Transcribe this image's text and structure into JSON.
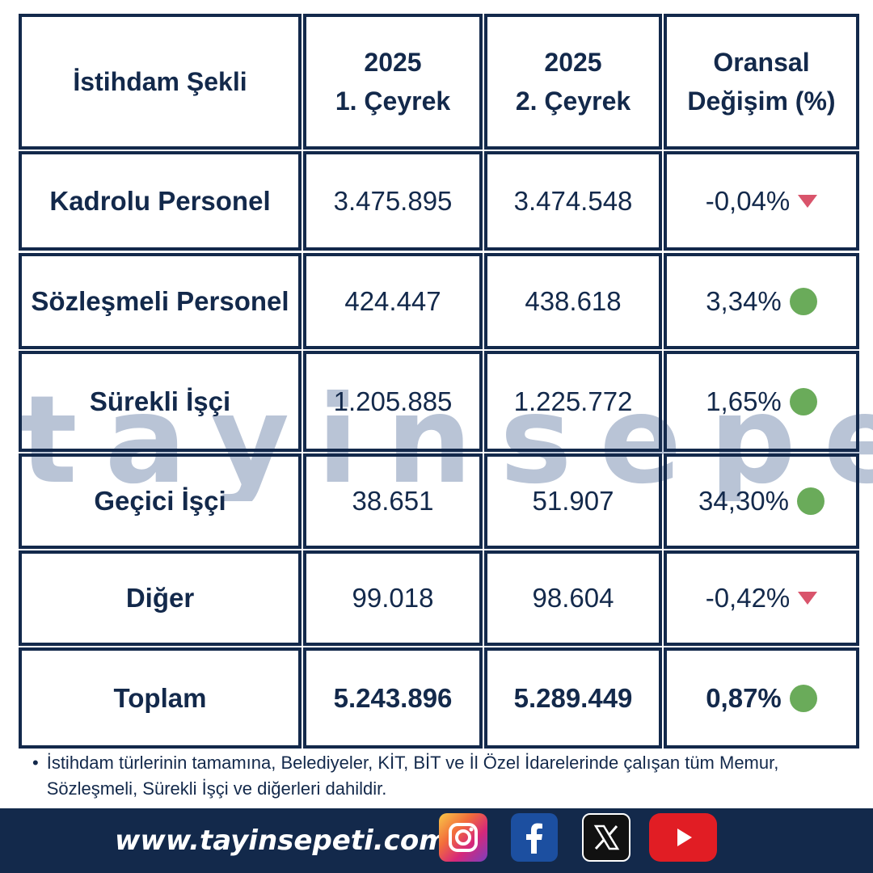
{
  "watermark": "tayinsepeti",
  "table": {
    "headers": {
      "col1": "İstihdam Şekli",
      "col2_line1": "2025",
      "col2_line2": "1. Çeyrek",
      "col3_line1": "2025",
      "col3_line2": "2. Çeyrek",
      "col4_line1": "Oransal",
      "col4_line2": "Değişim (%)"
    },
    "rows": [
      {
        "type": "Kadrolu Personel",
        "q1": "3.475.895",
        "q2": "3.474.548",
        "change": "-0,04%",
        "trend": "down"
      },
      {
        "type": "Sözleşmeli Personel",
        "q1": "424.447",
        "q2": "438.618",
        "change": "3,34%",
        "trend": "up"
      },
      {
        "type": "Sürekli İşçi",
        "q1": "1.205.885",
        "q2": "1.225.772",
        "change": "1,65%",
        "trend": "up"
      },
      {
        "type": "Geçici İşçi",
        "q1": "38.651",
        "q2": "51.907",
        "change": "34,30%",
        "trend": "up"
      },
      {
        "type": "Diğer",
        "q1": "99.018",
        "q2": "98.604",
        "change": "-0,42%",
        "trend": "down"
      }
    ],
    "total": {
      "type": "Toplam",
      "q1": "5.243.896",
      "q2": "5.289.449",
      "change": "0,87%",
      "trend": "up"
    }
  },
  "note": "İstihdam türlerinin tamamına, Belediyeler, KİT, BİT ve İl Özel İdarelerinde çalışan tüm Memur, Sözleşmeli, Sürekli İşçi ve diğerleri dahildir.",
  "footer": {
    "website": "www.tayinsepeti.com",
    "social_icons": [
      "instagram-icon",
      "facebook-icon",
      "x-icon",
      "youtube-icon"
    ]
  },
  "colors": {
    "navy": "#13294b",
    "up": "#6aab5a",
    "down": "#d9546b",
    "watermark": "#b9c4d6"
  }
}
